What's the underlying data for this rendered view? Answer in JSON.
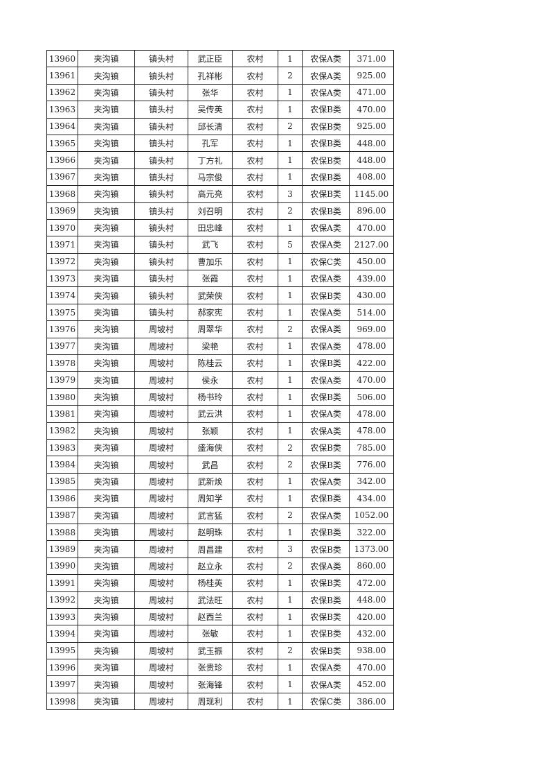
{
  "table": {
    "rows": [
      [
        "13960",
        "夹沟镇",
        "镇头村",
        "武正臣",
        "农村",
        "1",
        "农保A类",
        "371.00"
      ],
      [
        "13961",
        "夹沟镇",
        "镇头村",
        "孔祥彬",
        "农村",
        "2",
        "农保A类",
        "925.00"
      ],
      [
        "13962",
        "夹沟镇",
        "镇头村",
        "张华",
        "农村",
        "1",
        "农保A类",
        "471.00"
      ],
      [
        "13963",
        "夹沟镇",
        "镇头村",
        "吴传英",
        "农村",
        "1",
        "农保B类",
        "470.00"
      ],
      [
        "13964",
        "夹沟镇",
        "镇头村",
        "邱长清",
        "农村",
        "2",
        "农保B类",
        "925.00"
      ],
      [
        "13965",
        "夹沟镇",
        "镇头村",
        "孔军",
        "农村",
        "1",
        "农保B类",
        "448.00"
      ],
      [
        "13966",
        "夹沟镇",
        "镇头村",
        "丁方礼",
        "农村",
        "1",
        "农保B类",
        "448.00"
      ],
      [
        "13967",
        "夹沟镇",
        "镇头村",
        "马宗俊",
        "农村",
        "1",
        "农保B类",
        "408.00"
      ],
      [
        "13968",
        "夹沟镇",
        "镇头村",
        "高元亮",
        "农村",
        "3",
        "农保B类",
        "1145.00"
      ],
      [
        "13969",
        "夹沟镇",
        "镇头村",
        "刘召明",
        "农村",
        "2",
        "农保B类",
        "896.00"
      ],
      [
        "13970",
        "夹沟镇",
        "镇头村",
        "田忠峰",
        "农村",
        "1",
        "农保A类",
        "470.00"
      ],
      [
        "13971",
        "夹沟镇",
        "镇头村",
        "武飞",
        "农村",
        "5",
        "农保A类",
        "2127.00"
      ],
      [
        "13972",
        "夹沟镇",
        "镇头村",
        "曹加乐",
        "农村",
        "1",
        "农保C类",
        "450.00"
      ],
      [
        "13973",
        "夹沟镇",
        "镇头村",
        "张霞",
        "农村",
        "1",
        "农保A类",
        "439.00"
      ],
      [
        "13974",
        "夹沟镇",
        "镇头村",
        "武荣侠",
        "农村",
        "1",
        "农保B类",
        "430.00"
      ],
      [
        "13975",
        "夹沟镇",
        "镇头村",
        "郝家宪",
        "农村",
        "1",
        "农保A类",
        "514.00"
      ],
      [
        "13976",
        "夹沟镇",
        "周坡村",
        "周翠华",
        "农村",
        "2",
        "农保A类",
        "969.00"
      ],
      [
        "13977",
        "夹沟镇",
        "周坡村",
        "梁艳",
        "农村",
        "1",
        "农保A类",
        "478.00"
      ],
      [
        "13978",
        "夹沟镇",
        "周坡村",
        "陈桂云",
        "农村",
        "1",
        "农保B类",
        "422.00"
      ],
      [
        "13979",
        "夹沟镇",
        "周坡村",
        "侯永",
        "农村",
        "1",
        "农保A类",
        "470.00"
      ],
      [
        "13980",
        "夹沟镇",
        "周坡村",
        "杨书玲",
        "农村",
        "1",
        "农保B类",
        "506.00"
      ],
      [
        "13981",
        "夹沟镇",
        "周坡村",
        "武云洪",
        "农村",
        "1",
        "农保A类",
        "478.00"
      ],
      [
        "13982",
        "夹沟镇",
        "周坡村",
        "张颖",
        "农村",
        "1",
        "农保A类",
        "478.00"
      ],
      [
        "13983",
        "夹沟镇",
        "周坡村",
        "盛海侠",
        "农村",
        "2",
        "农保B类",
        "785.00"
      ],
      [
        "13984",
        "夹沟镇",
        "周坡村",
        "武昌",
        "农村",
        "2",
        "农保B类",
        "776.00"
      ],
      [
        "13985",
        "夹沟镇",
        "周坡村",
        "武新焕",
        "农村",
        "1",
        "农保A类",
        "342.00"
      ],
      [
        "13986",
        "夹沟镇",
        "周坡村",
        "周知学",
        "农村",
        "1",
        "农保B类",
        "434.00"
      ],
      [
        "13987",
        "夹沟镇",
        "周坡村",
        "武言猛",
        "农村",
        "2",
        "农保A类",
        "1052.00"
      ],
      [
        "13988",
        "夹沟镇",
        "周坡村",
        "赵明珠",
        "农村",
        "1",
        "农保B类",
        "322.00"
      ],
      [
        "13989",
        "夹沟镇",
        "周坡村",
        "周昌建",
        "农村",
        "3",
        "农保B类",
        "1373.00"
      ],
      [
        "13990",
        "夹沟镇",
        "周坡村",
        "赵立永",
        "农村",
        "2",
        "农保A类",
        "860.00"
      ],
      [
        "13991",
        "夹沟镇",
        "周坡村",
        "杨桂英",
        "农村",
        "1",
        "农保B类",
        "472.00"
      ],
      [
        "13992",
        "夹沟镇",
        "周坡村",
        "武法旺",
        "农村",
        "1",
        "农保B类",
        "448.00"
      ],
      [
        "13993",
        "夹沟镇",
        "周坡村",
        "赵西兰",
        "农村",
        "1",
        "农保B类",
        "420.00"
      ],
      [
        "13994",
        "夹沟镇",
        "周坡村",
        "张敏",
        "农村",
        "1",
        "农保B类",
        "432.00"
      ],
      [
        "13995",
        "夹沟镇",
        "周坡村",
        "武玉振",
        "农村",
        "2",
        "农保B类",
        "938.00"
      ],
      [
        "13996",
        "夹沟镇",
        "周坡村",
        "张贵珍",
        "农村",
        "1",
        "农保A类",
        "470.00"
      ],
      [
        "13997",
        "夹沟镇",
        "周坡村",
        "张海锋",
        "农村",
        "1",
        "农保A类",
        "452.00"
      ],
      [
        "13998",
        "夹沟镇",
        "周坡村",
        "周现利",
        "农村",
        "1",
        "农保C类",
        "386.00"
      ]
    ]
  }
}
